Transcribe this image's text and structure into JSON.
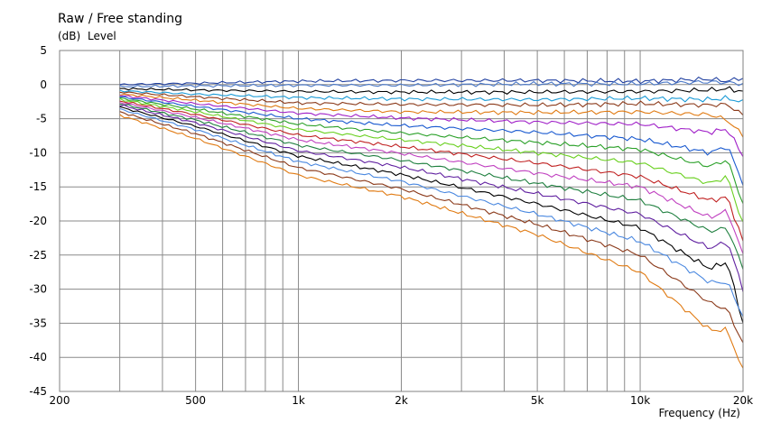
{
  "chart_data": {
    "type": "line",
    "title": "Raw / Free standing",
    "ylabel_unit": "(dB)",
    "ylabel": "Level",
    "xlabel": "Frequency  (Hz)",
    "x_scale": "log",
    "xlim": [
      200,
      20000
    ],
    "ylim": [
      -45,
      5
    ],
    "grid": true,
    "x_tick_labels": [
      {
        "value": 200,
        "label": "200"
      },
      {
        "value": 500,
        "label": "500"
      },
      {
        "value": 1000,
        "label": "1k"
      },
      {
        "value": 2000,
        "label": "2k"
      },
      {
        "value": 5000,
        "label": "5k"
      },
      {
        "value": 10000,
        "label": "10k"
      },
      {
        "value": 20000,
        "label": "20k"
      }
    ],
    "y_ticks": [
      5,
      0,
      -5,
      -10,
      -15,
      -20,
      -25,
      -30,
      -35,
      -40,
      -45
    ],
    "x": [
      300,
      500,
      1000,
      2000,
      5000,
      10000,
      16000,
      18000,
      20000
    ],
    "series": [
      {
        "color": "#1f3fa0",
        "values": [
          0,
          0.2,
          0.5,
          0.6,
          0.6,
          0.5,
          0.8,
          0.5,
          1.0
        ]
      },
      {
        "color": "#4a78c8",
        "values": [
          -0.3,
          -0.2,
          -0.1,
          -0.1,
          0.1,
          0.1,
          0.4,
          0.3,
          0.1
        ]
      },
      {
        "color": "#000000",
        "values": [
          -0.6,
          -0.8,
          -1.0,
          -1.1,
          -1.1,
          -1.0,
          -0.8,
          -0.6,
          -1.0
        ]
      },
      {
        "color": "#1a9ad6",
        "values": [
          -0.9,
          -1.4,
          -1.9,
          -2.1,
          -2.2,
          -2.0,
          -2.2,
          -2.0,
          -2.6
        ]
      },
      {
        "color": "#8b3a1a",
        "values": [
          -1.1,
          -1.8,
          -2.7,
          -2.9,
          -3.0,
          -2.8,
          -3.0,
          -2.9,
          -4.5
        ]
      },
      {
        "color": "#e07a12",
        "values": [
          -1.4,
          -2.3,
          -3.5,
          -4.0,
          -4.1,
          -4.0,
          -4.4,
          -5.2,
          -7.5
        ]
      },
      {
        "color": "#a020c8",
        "values": [
          -1.6,
          -2.8,
          -4.2,
          -4.9,
          -5.5,
          -5.8,
          -7.0,
          -6.5,
          -10.5
        ]
      },
      {
        "color": "#1a5ad0",
        "values": [
          -1.8,
          -3.2,
          -5.0,
          -6.0,
          -7.0,
          -8.0,
          -10.0,
          -9.0,
          -14.5
        ]
      },
      {
        "color": "#2aa028",
        "values": [
          -2.0,
          -3.6,
          -5.8,
          -7.1,
          -8.5,
          -9.5,
          -12.0,
          -11.0,
          -17.5
        ]
      },
      {
        "color": "#6ad020",
        "values": [
          -2.2,
          -4.0,
          -6.6,
          -8.1,
          -10.0,
          -11.5,
          -14.5,
          -13.5,
          -20.5
        ]
      },
      {
        "color": "#c02020",
        "values": [
          -2.4,
          -4.4,
          -7.4,
          -9.1,
          -11.5,
          -13.5,
          -17.0,
          -16.5,
          -23.0
        ]
      },
      {
        "color": "#c040c0",
        "values": [
          -2.6,
          -4.8,
          -8.1,
          -10.1,
          -13.0,
          -15.0,
          -19.5,
          -18.5,
          -25.0
        ]
      },
      {
        "color": "#208040",
        "values": [
          -2.8,
          -5.2,
          -8.9,
          -11.1,
          -14.5,
          -17.0,
          -21.5,
          -21.0,
          -27.0
        ]
      },
      {
        "color": "#6020a0",
        "values": [
          -3.0,
          -5.6,
          -9.7,
          -12.1,
          -16.0,
          -19.0,
          -24.0,
          -23.0,
          -30.0
        ]
      },
      {
        "color": "#000000",
        "values": [
          -3.3,
          -6.1,
          -10.5,
          -13.2,
          -17.5,
          -21.0,
          -27.0,
          -26.0,
          -35.0
        ]
      },
      {
        "color": "#4a88e0",
        "values": [
          -3.6,
          -6.6,
          -11.3,
          -14.2,
          -19.0,
          -23.0,
          -29.0,
          -29.0,
          -34.0
        ]
      },
      {
        "color": "#8b3a1a",
        "values": [
          -4.0,
          -7.2,
          -12.2,
          -15.3,
          -20.5,
          -25.0,
          -32.0,
          -33.0,
          -38.0
        ]
      },
      {
        "color": "#e07a12",
        "values": [
          -4.5,
          -7.9,
          -13.3,
          -16.4,
          -22.0,
          -27.5,
          -36.0,
          -36.0,
          -42.0
        ]
      }
    ]
  }
}
